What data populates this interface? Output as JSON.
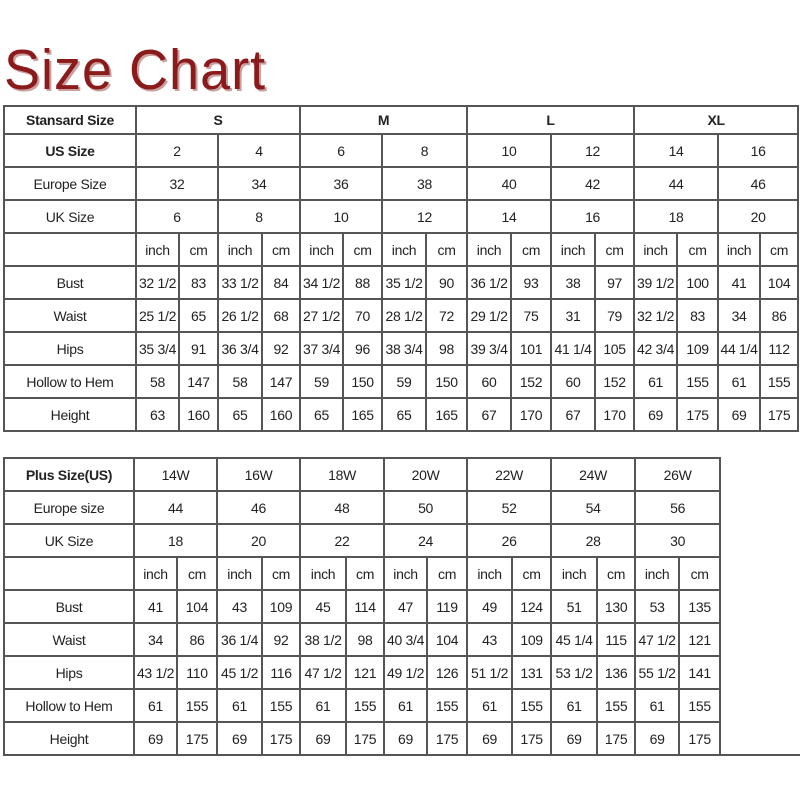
{
  "title": "Size Chart",
  "colors": {
    "title": "#8b1a1a",
    "grid": "#555555"
  },
  "standard_table": {
    "header_label": "Stansard Size",
    "groups": [
      "S",
      "M",
      "L",
      "XL"
    ],
    "us_label": "US Size",
    "us_sizes": [
      "2",
      "4",
      "6",
      "8",
      "10",
      "12",
      "14",
      "16"
    ],
    "europe_label": "Europe Size",
    "europe_sizes": [
      "32",
      "34",
      "36",
      "38",
      "40",
      "42",
      "44",
      "46"
    ],
    "uk_label": "UK Size",
    "uk_sizes": [
      "6",
      "8",
      "10",
      "12",
      "14",
      "16",
      "18",
      "20"
    ],
    "units": [
      "inch",
      "cm"
    ],
    "measurements": [
      {
        "label": "Bust",
        "values": [
          "32 1/2",
          "83",
          "33 1/2",
          "84",
          "34 1/2",
          "88",
          "35 1/2",
          "90",
          "36 1/2",
          "93",
          "38",
          "97",
          "39 1/2",
          "100",
          "41",
          "104"
        ]
      },
      {
        "label": "Waist",
        "values": [
          "25 1/2",
          "65",
          "26 1/2",
          "68",
          "27 1/2",
          "70",
          "28 1/2",
          "72",
          "29 1/2",
          "75",
          "31",
          "79",
          "32 1/2",
          "83",
          "34",
          "86"
        ]
      },
      {
        "label": "Hips",
        "values": [
          "35 3/4",
          "91",
          "36 3/4",
          "92",
          "37 3/4",
          "96",
          "38 3/4",
          "98",
          "39 3/4",
          "101",
          "41 1/4",
          "105",
          "42 3/4",
          "109",
          "44 1/4",
          "112"
        ]
      },
      {
        "label": "Hollow to Hem",
        "values": [
          "58",
          "147",
          "58",
          "147",
          "59",
          "150",
          "59",
          "150",
          "60",
          "152",
          "60",
          "152",
          "61",
          "155",
          "61",
          "155"
        ]
      },
      {
        "label": "Height",
        "values": [
          "63",
          "160",
          "65",
          "160",
          "65",
          "165",
          "65",
          "165",
          "67",
          "170",
          "67",
          "170",
          "69",
          "175",
          "69",
          "175"
        ]
      }
    ]
  },
  "plus_table": {
    "header_label": "Plus Size(US)",
    "us_sizes": [
      "14W",
      "16W",
      "18W",
      "20W",
      "22W",
      "24W",
      "26W"
    ],
    "europe_label": "Europe size",
    "europe_sizes": [
      "44",
      "46",
      "48",
      "50",
      "52",
      "54",
      "56"
    ],
    "uk_label": "UK Size",
    "uk_sizes": [
      "18",
      "20",
      "22",
      "24",
      "26",
      "28",
      "30"
    ],
    "units": [
      "inch",
      "cm"
    ],
    "measurements": [
      {
        "label": "Bust",
        "values": [
          "41",
          "104",
          "43",
          "109",
          "45",
          "114",
          "47",
          "119",
          "49",
          "124",
          "51",
          "130",
          "53",
          "135"
        ]
      },
      {
        "label": "Waist",
        "values": [
          "34",
          "86",
          "36 1/4",
          "92",
          "38 1/2",
          "98",
          "40 3/4",
          "104",
          "43",
          "109",
          "45 1/4",
          "115",
          "47 1/2",
          "121"
        ]
      },
      {
        "label": "Hips",
        "values": [
          "43 1/2",
          "110",
          "45 1/2",
          "116",
          "47 1/2",
          "121",
          "49 1/2",
          "126",
          "51 1/2",
          "131",
          "53 1/2",
          "136",
          "55 1/2",
          "141"
        ]
      },
      {
        "label": "Hollow to Hem",
        "values": [
          "61",
          "155",
          "61",
          "155",
          "61",
          "155",
          "61",
          "155",
          "61",
          "155",
          "61",
          "155",
          "61",
          "155"
        ]
      },
      {
        "label": "Height",
        "values": [
          "69",
          "175",
          "69",
          "175",
          "69",
          "175",
          "69",
          "175",
          "69",
          "175",
          "69",
          "175",
          "69",
          "175"
        ]
      }
    ]
  }
}
